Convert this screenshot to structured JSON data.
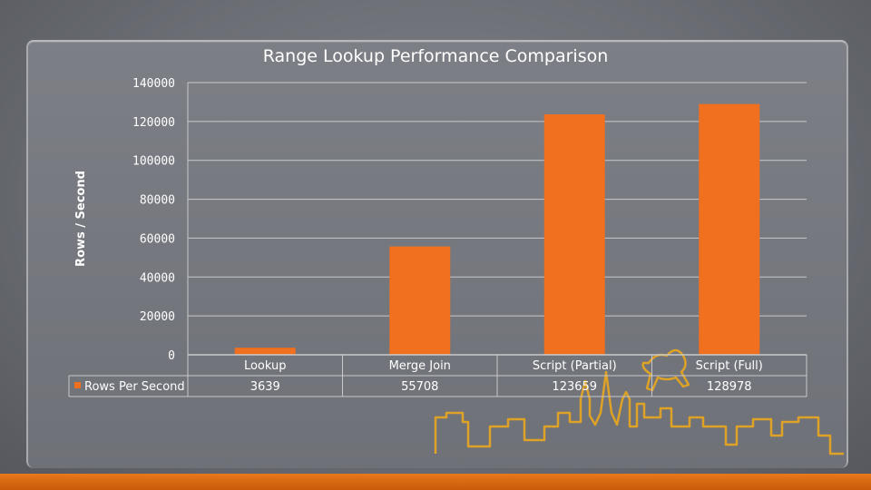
{
  "chart_data": {
    "type": "bar",
    "title": "Range Lookup Performance Comparison",
    "ylabel": "Rows / Second",
    "xlabel": "",
    "categories": [
      "Lookup",
      "Merge Join",
      "Script (Partial)",
      "Script (Full)"
    ],
    "series": [
      {
        "name": "Rows Per Second",
        "values": [
          3639,
          55708,
          123659,
          128978
        ],
        "color": "#f07020"
      }
    ],
    "data_labels": [
      "3639",
      "55708",
      "123659",
      "128978"
    ],
    "ylim": [
      0,
      140000
    ],
    "yticks": [
      "0",
      "20000",
      "40000",
      "60000",
      "80000",
      "100000",
      "120000",
      "140000"
    ],
    "grid": true,
    "legend": "data table, left",
    "data_table": true
  },
  "colors": {
    "bar": "#f07020",
    "accent_orange": "#e8781c",
    "gridline": "#c8c9cc",
    "background": "#6e7077",
    "skyline": "#e0a020"
  },
  "decoration": {
    "skyline_icon": "city-skyline-icon",
    "statue_icon": "equestrian-statue-icon"
  }
}
